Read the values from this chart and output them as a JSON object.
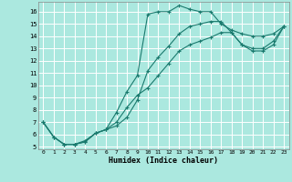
{
  "xlabel": "Humidex (Indice chaleur)",
  "bg_color": "#abe8df",
  "grid_color": "#ffffff",
  "line_color": "#1a7a6e",
  "xlim": [
    -0.5,
    23.5
  ],
  "ylim": [
    4.8,
    16.8
  ],
  "xticks": [
    0,
    1,
    2,
    3,
    4,
    5,
    6,
    7,
    8,
    9,
    10,
    11,
    12,
    13,
    14,
    15,
    16,
    17,
    18,
    19,
    20,
    21,
    22,
    23
  ],
  "yticks": [
    5,
    6,
    7,
    8,
    9,
    10,
    11,
    12,
    13,
    14,
    15,
    16
  ],
  "line1_x": [
    0,
    1,
    2,
    3,
    4,
    5,
    6,
    7,
    8,
    9,
    10,
    11,
    12,
    13,
    14,
    15,
    16,
    17,
    18,
    19,
    20,
    21,
    22,
    23
  ],
  "line1_y": [
    7.0,
    5.8,
    5.2,
    5.2,
    5.4,
    6.1,
    6.4,
    7.8,
    9.5,
    10.8,
    15.8,
    16.0,
    16.0,
    16.5,
    16.2,
    16.0,
    16.0,
    15.0,
    14.5,
    14.2,
    14.0,
    14.0,
    14.2,
    14.8
  ],
  "line2_x": [
    0,
    1,
    2,
    3,
    4,
    5,
    6,
    7,
    8,
    9,
    10,
    11,
    12,
    13,
    14,
    15,
    16,
    17,
    18,
    19,
    20,
    21,
    22,
    23
  ],
  "line2_y": [
    7.0,
    5.8,
    5.2,
    5.2,
    5.4,
    6.1,
    6.4,
    6.7,
    7.4,
    8.8,
    11.2,
    12.3,
    13.2,
    14.2,
    14.8,
    15.0,
    15.2,
    15.2,
    14.3,
    13.3,
    13.0,
    13.0,
    13.6,
    14.8
  ],
  "line3_x": [
    0,
    1,
    2,
    3,
    4,
    5,
    6,
    7,
    8,
    9,
    10,
    11,
    12,
    13,
    14,
    15,
    16,
    17,
    18,
    19,
    20,
    21,
    22,
    23
  ],
  "line3_y": [
    7.0,
    5.8,
    5.2,
    5.2,
    5.5,
    6.1,
    6.4,
    7.0,
    8.2,
    9.2,
    9.8,
    10.8,
    11.8,
    12.8,
    13.3,
    13.6,
    13.9,
    14.3,
    14.3,
    13.3,
    12.8,
    12.8,
    13.3,
    14.8
  ]
}
